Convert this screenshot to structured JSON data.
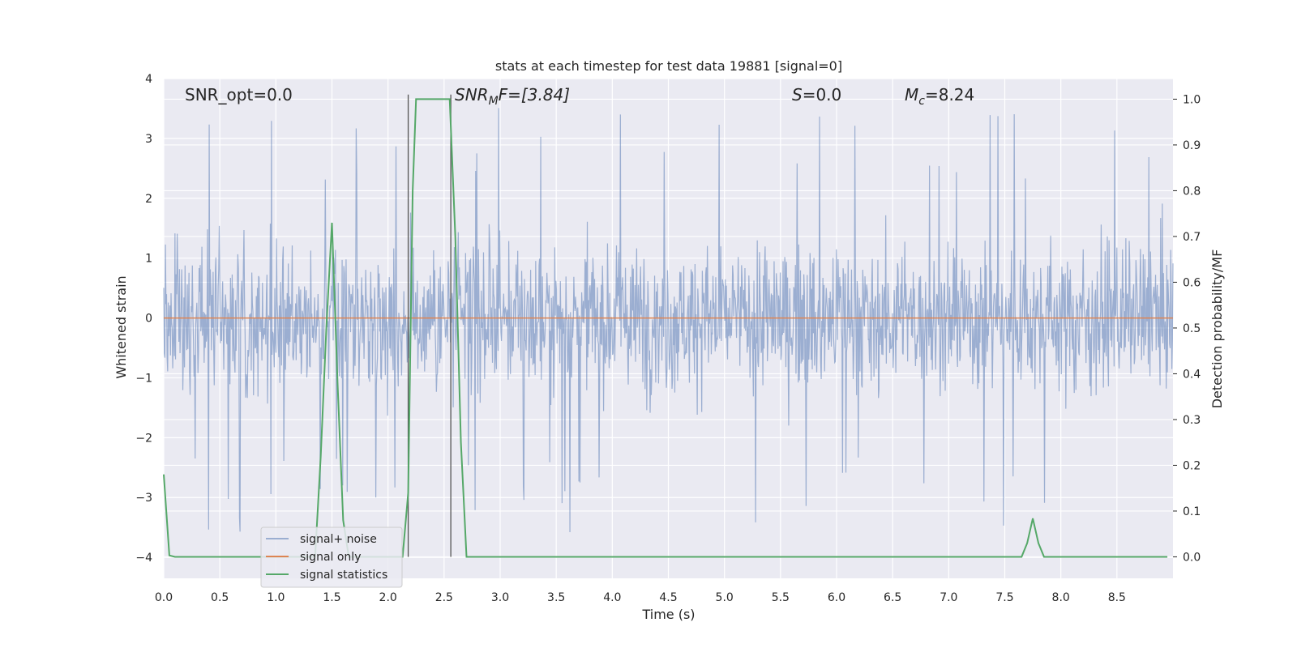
{
  "chart_data": {
    "type": "line",
    "title": "stats at each timestep for test data 19881 [signal=0]",
    "xlabel": "Time (s)",
    "ylabel": "Whitened strain",
    "y2label": "Detection probability/MF",
    "xlim": [
      0,
      9
    ],
    "ylim": [
      -4.35,
      4.0
    ],
    "y2lim": [
      -0.047,
      1.045
    ],
    "x_ticks": [
      "0.0",
      "0.5",
      "1.0",
      "1.5",
      "2.0",
      "2.5",
      "3.0",
      "3.5",
      "4.0",
      "4.5",
      "5.0",
      "5.5",
      "6.0",
      "6.5",
      "7.0",
      "7.5",
      "8.0",
      "8.5"
    ],
    "y_ticks": [
      "−4",
      "−3",
      "−2",
      "−1",
      "0",
      "1",
      "2",
      "3",
      "4"
    ],
    "y2_ticks": [
      "0.0",
      "0.1",
      "0.2",
      "0.3",
      "0.4",
      "0.5",
      "0.6",
      "0.7",
      "0.8",
      "0.9",
      "1.0"
    ],
    "grid": true,
    "legend_position": "lower-left",
    "annotations": {
      "snr_opt": "SNR_opt=0.0",
      "snr_mf_base": "SNR",
      "snr_mf_sub": "M",
      "snr_mf_rest": "F=[3.84]",
      "s_italic": "S",
      "s_rest": "=0.0",
      "mc_base": "M",
      "mc_sub": "c",
      "mc_rest": "=8.24"
    },
    "vertical_lines_x": [
      2.18,
      2.56
    ],
    "series": [
      {
        "name": "signal+ noise",
        "color": "#4c72b0",
        "kind": "noise",
        "n_samples": 1800,
        "typical_range": [
          -1.7,
          1.4
        ],
        "extreme_range": [
          -3.9,
          3.65
        ]
      },
      {
        "name": "signal only",
        "color": "#dd8452",
        "kind": "flat",
        "value": 0
      },
      {
        "name": "signal statistics",
        "color": "#55a868",
        "axis": "right",
        "x": [
          0.0,
          0.05,
          0.1,
          0.15,
          1.35,
          1.4,
          1.45,
          1.5,
          1.55,
          1.6,
          1.65,
          2.13,
          2.18,
          2.22,
          2.25,
          2.55,
          2.6,
          2.65,
          2.7,
          7.6,
          7.65,
          7.7,
          7.75,
          7.8,
          7.85,
          8.95
        ],
        "values": [
          0.18,
          0.003,
          0.0,
          0.0,
          0.0,
          0.22,
          0.5,
          0.73,
          0.38,
          0.08,
          0.0,
          0.0,
          0.14,
          0.8,
          1.0,
          1.0,
          0.7,
          0.25,
          0.0,
          0.0,
          0.0,
          0.03,
          0.084,
          0.03,
          0.0,
          0.0
        ]
      }
    ]
  }
}
